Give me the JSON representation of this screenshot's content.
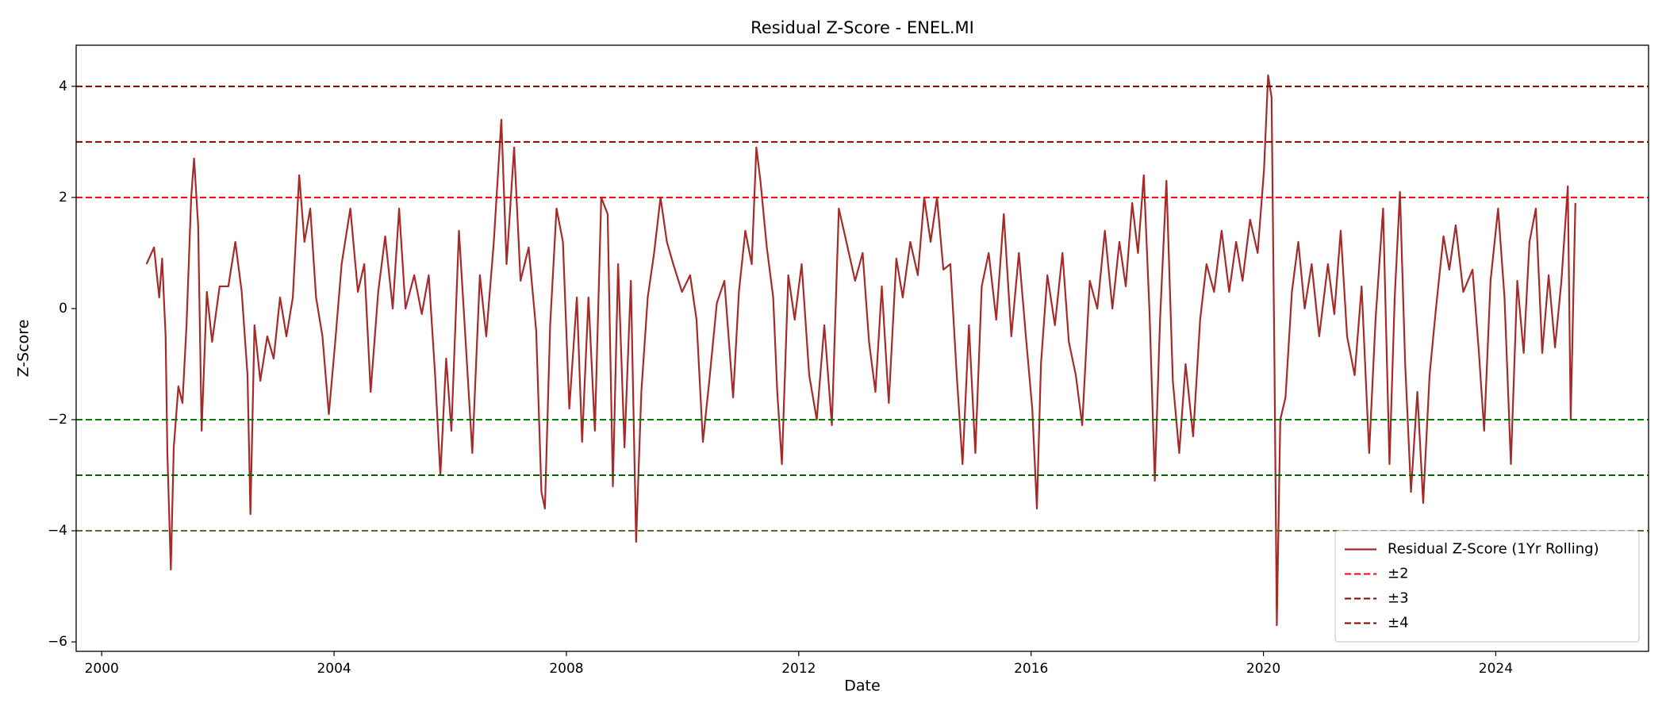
{
  "chart_data": {
    "type": "line",
    "title": "Residual Z-Score - ENEL.MI",
    "x_label": "Date",
    "y_label": "Z-Score",
    "xlim": [
      1999.56,
      2026.63
    ],
    "xticks": [
      2000,
      2004,
      2008,
      2012,
      2016,
      2020,
      2024
    ],
    "ylim": [
      -6.17,
      4.74
    ],
    "yticks": [
      {
        "value": -6,
        "label": "−6"
      },
      {
        "value": -4,
        "label": "−4"
      },
      {
        "value": -2,
        "label": "−2"
      },
      0,
      2,
      4
    ],
    "grid": false,
    "legend": "lower right",
    "x": [
      2000.77,
      2000.9,
      2000.99,
      2001.04,
      2001.1,
      2001.13,
      2001.19,
      2001.24,
      2001.32,
      2001.39,
      2001.46,
      2001.54,
      2001.59,
      2001.66,
      2001.72,
      2001.81,
      2001.9,
      2002.03,
      2002.18,
      2002.3,
      2002.41,
      2002.51,
      2002.56,
      2002.63,
      2002.73,
      2002.85,
      2002.96,
      2003.07,
      2003.18,
      2003.29,
      2003.4,
      2003.49,
      2003.59,
      2003.69,
      2003.8,
      2003.91,
      2004.02,
      2004.13,
      2004.28,
      2004.41,
      2004.52,
      2004.63,
      2004.76,
      2004.88,
      2005.01,
      2005.12,
      2005.23,
      2005.38,
      2005.51,
      2005.63,
      2005.74,
      2005.83,
      2005.93,
      2006.02,
      2006.15,
      2006.26,
      2006.38,
      2006.51,
      2006.62,
      2006.75,
      2006.88,
      2006.97,
      2007.1,
      2007.21,
      2007.35,
      2007.48,
      2007.57,
      2007.63,
      2007.72,
      2007.83,
      2007.94,
      2008.05,
      2008.18,
      2008.27,
      2008.38,
      2008.49,
      2008.6,
      2008.71,
      2008.8,
      2008.89,
      2009.0,
      2009.11,
      2009.2,
      2009.29,
      2009.4,
      2009.51,
      2009.62,
      2009.73,
      2009.84,
      2009.99,
      2010.13,
      2010.24,
      2010.35,
      2010.46,
      2010.59,
      2010.72,
      2010.87,
      2010.97,
      2011.08,
      2011.19,
      2011.27,
      2011.34,
      2011.45,
      2011.56,
      2011.63,
      2011.71,
      2011.82,
      2011.93,
      2012.05,
      2012.18,
      2012.31,
      2012.44,
      2012.57,
      2012.69,
      2012.82,
      2012.97,
      2013.1,
      2013.21,
      2013.32,
      2013.43,
      2013.55,
      2013.68,
      2013.79,
      2013.92,
      2014.05,
      2014.16,
      2014.27,
      2014.38,
      2014.49,
      2014.61,
      2014.72,
      2014.82,
      2014.93,
      2015.04,
      2015.15,
      2015.27,
      2015.4,
      2015.53,
      2015.66,
      2015.79,
      2015.91,
      2016.02,
      2016.1,
      2016.17,
      2016.28,
      2016.41,
      2016.54,
      2016.65,
      2016.77,
      2016.88,
      2017.01,
      2017.14,
      2017.27,
      2017.4,
      2017.52,
      2017.63,
      2017.74,
      2017.84,
      2017.94,
      2018.04,
      2018.13,
      2018.22,
      2018.33,
      2018.44,
      2018.55,
      2018.66,
      2018.79,
      2018.91,
      2019.02,
      2019.15,
      2019.28,
      2019.41,
      2019.53,
      2019.64,
      2019.77,
      2019.9,
      2020.01,
      2020.08,
      2020.14,
      2020.19,
      2020.23,
      2020.29,
      2020.38,
      2020.49,
      2020.6,
      2020.71,
      2020.83,
      2020.96,
      2021.11,
      2021.22,
      2021.33,
      2021.44,
      2021.57,
      2021.69,
      2021.82,
      2021.93,
      2022.06,
      2022.17,
      2022.26,
      2022.35,
      2022.44,
      2022.54,
      2022.65,
      2022.75,
      2022.86,
      2022.97,
      2023.1,
      2023.2,
      2023.31,
      2023.44,
      2023.6,
      2023.71,
      2023.8,
      2023.91,
      2024.04,
      2024.15,
      2024.26,
      2024.37,
      2024.48,
      2024.58,
      2024.69,
      2024.8,
      2024.91,
      2025.02,
      2025.13,
      2025.24,
      2025.29,
      2025.37
    ],
    "series": [
      {
        "name": "Residual Z-Score (1Yr Rolling)",
        "color": "#a52a2a",
        "values": [
          0.8,
          1.1,
          0.2,
          0.9,
          -0.5,
          -2.6,
          -4.7,
          -2.5,
          -1.4,
          -1.7,
          -0.3,
          2.0,
          2.7,
          1.5,
          -2.2,
          0.3,
          -0.6,
          0.4,
          0.4,
          1.2,
          0.3,
          -1.2,
          -3.7,
          -0.3,
          -1.3,
          -0.5,
          -0.9,
          0.2,
          -0.5,
          0.2,
          2.4,
          1.2,
          1.8,
          0.2,
          -0.5,
          -1.9,
          -0.6,
          0.8,
          1.8,
          0.3,
          0.8,
          -1.5,
          0.3,
          1.3,
          0.0,
          1.8,
          0.0,
          0.6,
          -0.1,
          0.6,
          -1.2,
          -3.0,
          -0.9,
          -2.2,
          1.4,
          -0.5,
          -2.6,
          0.6,
          -0.5,
          1.2,
          3.4,
          0.8,
          2.9,
          0.5,
          1.1,
          -0.4,
          -3.3,
          -3.6,
          -0.3,
          1.8,
          1.2,
          -1.8,
          0.2,
          -2.4,
          0.2,
          -2.2,
          2.0,
          1.7,
          -3.2,
          0.8,
          -2.5,
          0.5,
          -4.2,
          -1.5,
          0.2,
          1.0,
          2.0,
          1.2,
          0.8,
          0.3,
          0.6,
          -0.2,
          -2.4,
          -1.3,
          0.1,
          0.5,
          -1.6,
          0.3,
          1.4,
          0.8,
          2.9,
          2.3,
          1.1,
          0.2,
          -1.5,
          -2.8,
          0.6,
          -0.2,
          0.8,
          -1.2,
          -2.0,
          -0.3,
          -2.1,
          1.8,
          1.2,
          0.5,
          1.0,
          -0.6,
          -1.5,
          0.4,
          -1.7,
          0.9,
          0.2,
          1.2,
          0.6,
          2.0,
          1.2,
          2.0,
          0.7,
          0.8,
          -1.2,
          -2.8,
          -0.3,
          -2.6,
          0.4,
          1.0,
          -0.2,
          1.7,
          -0.5,
          1.0,
          -0.5,
          -1.8,
          -3.6,
          -1.0,
          0.6,
          -0.3,
          1.0,
          -0.6,
          -1.2,
          -2.1,
          0.5,
          0.0,
          1.4,
          0.0,
          1.2,
          0.4,
          1.9,
          1.0,
          2.4,
          -0.1,
          -3.1,
          -0.2,
          2.3,
          -1.3,
          -2.6,
          -1.0,
          -2.3,
          -0.2,
          0.8,
          0.3,
          1.4,
          0.3,
          1.2,
          0.5,
          1.6,
          1.0,
          2.5,
          4.2,
          3.8,
          -1.0,
          -5.7,
          -2.0,
          -1.6,
          0.3,
          1.2,
          0.0,
          0.8,
          -0.5,
          0.8,
          -0.1,
          1.4,
          -0.5,
          -1.2,
          0.4,
          -2.6,
          -0.2,
          1.8,
          -2.8,
          0.2,
          2.1,
          -1.0,
          -3.3,
          -1.5,
          -3.5,
          -1.2,
          0.0,
          1.3,
          0.7,
          1.5,
          0.3,
          0.7,
          -0.8,
          -2.2,
          0.5,
          1.8,
          0.2,
          -2.8,
          0.5,
          -0.8,
          1.2,
          1.8,
          -0.8,
          0.6,
          -0.7,
          0.5,
          2.2,
          -2.0,
          1.9
        ]
      }
    ],
    "reference_lines": [
      {
        "name": "±2",
        "values": [
          2,
          -2
        ],
        "colors": [
          "#ff0000",
          "#008000"
        ]
      },
      {
        "name": "±3",
        "values": [
          3,
          -3
        ],
        "colors": [
          "#8b0000",
          "#006400"
        ]
      },
      {
        "name": "±4",
        "values": [
          4,
          -4
        ],
        "colors": [
          "#800000",
          "#556b2f"
        ]
      }
    ]
  }
}
